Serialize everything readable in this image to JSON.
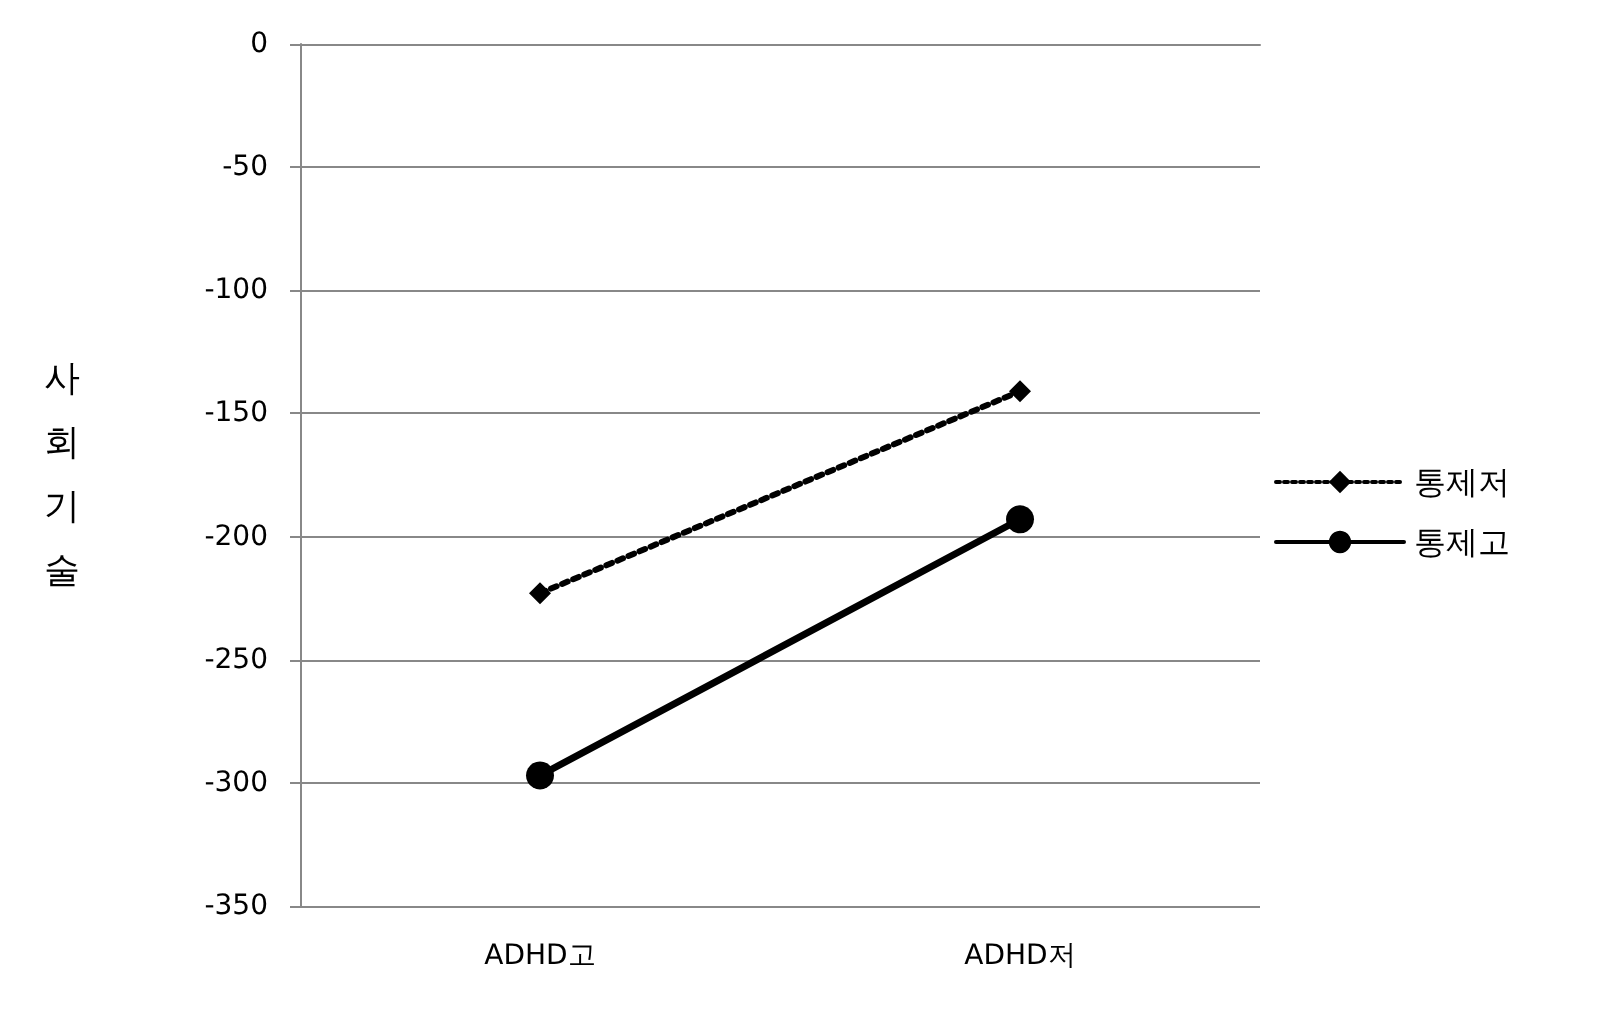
{
  "chart_data": {
    "type": "line",
    "ylabel": "사회기술",
    "categories": [
      "ADHD고",
      "ADHD저"
    ],
    "series": [
      {
        "name": "통제저",
        "color": "#000000",
        "values": [
          -223,
          -141
        ],
        "marker": "diamond",
        "line_style": "dotted"
      },
      {
        "name": "통제고",
        "color": "#000000",
        "values": [
          -297,
          -193
        ],
        "marker": "circle",
        "line_style": "solid"
      }
    ],
    "ylim": [
      -350,
      0
    ],
    "yticks": [
      -350,
      -300,
      -250,
      -200,
      -150,
      -100,
      -50,
      0
    ],
    "grid": "y",
    "legend": "right"
  }
}
